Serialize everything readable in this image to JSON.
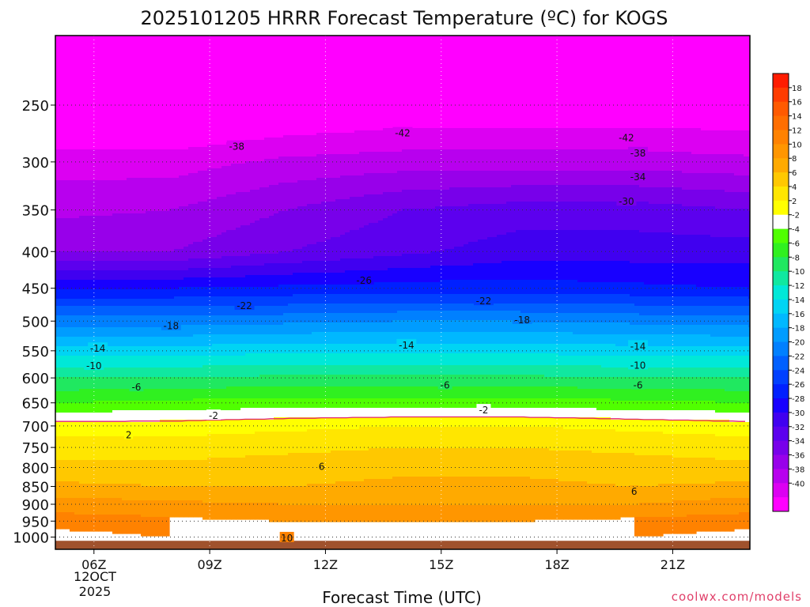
{
  "chart_data": {
    "type": "heatmap",
    "title": "2025101205 HRRR Forecast Temperature (ºC) for KOGS",
    "xlabel": "Forecast Time (UTC)",
    "ylabel": "",
    "x_range_hours_utc": [
      5,
      23
    ],
    "y_range_hPa": [
      1040,
      200
    ],
    "y_scale": "log",
    "x_ticks": [
      {
        "hour": 6,
        "label": "06Z"
      },
      {
        "hour": 9,
        "label": "09Z"
      },
      {
        "hour": 12,
        "label": "12Z"
      },
      {
        "hour": 15,
        "label": "15Z"
      },
      {
        "hour": 18,
        "label": "18Z"
      },
      {
        "hour": 21,
        "label": "21Z"
      }
    ],
    "date_label": {
      "line1": "12OCT",
      "line2": "2025"
    },
    "y_ticks": [
      250,
      300,
      350,
      400,
      450,
      500,
      550,
      600,
      650,
      700,
      750,
      800,
      850,
      900,
      950,
      1000
    ],
    "dotted_isobars": [
      250,
      300,
      350,
      400,
      450,
      500,
      550,
      600,
      650,
      700,
      750,
      800,
      850,
      900,
      950,
      1000
    ],
    "temperature_profile": {
      "hours": [
        5,
        8,
        11,
        14,
        17,
        20,
        23
      ],
      "levels_hPa": [
        1000,
        950,
        900,
        850,
        800,
        750,
        700,
        650,
        600,
        550,
        500,
        450,
        400,
        350,
        300,
        250,
        210
      ],
      "values_degC": [
        [
          13,
          12,
          11.5,
          11,
          11,
          12,
          13
        ],
        [
          11,
          10.5,
          10,
          10,
          10,
          10.5,
          11
        ],
        [
          9,
          8.5,
          8,
          8,
          8,
          8,
          9
        ],
        [
          6.5,
          6,
          6,
          6.5,
          6.5,
          6,
          6.5
        ],
        [
          4.5,
          4.5,
          5,
          5.5,
          5.5,
          5,
          4.5
        ],
        [
          3,
          3,
          3.5,
          4,
          4,
          3.5,
          3
        ],
        [
          1,
          1,
          1.5,
          2,
          2,
          1.5,
          1
        ],
        [
          -4,
          -3.5,
          -3,
          -3,
          -3,
          -3.5,
          -4
        ],
        [
          -8,
          -8,
          -7.5,
          -7.5,
          -7.5,
          -8,
          -8
        ],
        [
          -13,
          -13,
          -12.5,
          -12.5,
          -12.5,
          -13,
          -13
        ],
        [
          -19,
          -19,
          -18.5,
          -18,
          -18,
          -18.5,
          -19
        ],
        [
          -26,
          -26,
          -25.5,
          -25,
          -25,
          -25.5,
          -26
        ],
        [
          -34,
          -34,
          -32,
          -30.5,
          -29,
          -29,
          -29
        ],
        [
          -36.5,
          -36,
          -34,
          -32,
          -31,
          -31,
          -32
        ],
        [
          -39,
          -39,
          -37.5,
          -37,
          -37,
          -37,
          -37.5
        ],
        [
          -44,
          -44,
          -43,
          -42,
          -42,
          -42,
          -42
        ],
        [
          -46,
          -46,
          -46,
          -46,
          -46,
          -46,
          -46
        ]
      ]
    },
    "contour_labels": [
      {
        "text": "-42",
        "hour": 14.0,
        "hPa": 273
      },
      {
        "text": "-42",
        "hour": 19.8,
        "hPa": 277
      },
      {
        "text": "-38",
        "hour": 9.7,
        "hPa": 285
      },
      {
        "text": "-38",
        "hour": 20.1,
        "hPa": 291
      },
      {
        "text": "-34",
        "hour": 20.1,
        "hPa": 314
      },
      {
        "text": "-30",
        "hour": 19.8,
        "hPa": 340
      },
      {
        "text": "-26",
        "hour": 13.0,
        "hPa": 438
      },
      {
        "text": "-22",
        "hour": 9.9,
        "hPa": 475
      },
      {
        "text": "-22",
        "hour": 16.1,
        "hPa": 468
      },
      {
        "text": "-18",
        "hour": 8.0,
        "hPa": 507
      },
      {
        "text": "-18",
        "hour": 17.1,
        "hPa": 497
      },
      {
        "text": "-14",
        "hour": 6.1,
        "hPa": 545
      },
      {
        "text": "-14",
        "hour": 14.1,
        "hPa": 539
      },
      {
        "text": "-14",
        "hour": 20.1,
        "hPa": 541
      },
      {
        "text": "-10",
        "hour": 6.0,
        "hPa": 576
      },
      {
        "text": "-10",
        "hour": 20.1,
        "hPa": 575
      },
      {
        "text": "-6",
        "hour": 7.1,
        "hPa": 617
      },
      {
        "text": "-6",
        "hour": 15.1,
        "hPa": 613
      },
      {
        "text": "-6",
        "hour": 20.1,
        "hPa": 613
      },
      {
        "text": "-2",
        "hour": 9.1,
        "hPa": 676
      },
      {
        "text": "-2",
        "hour": 16.1,
        "hPa": 664
      },
      {
        "text": "2",
        "hour": 6.9,
        "hPa": 719
      },
      {
        "text": "6",
        "hour": 11.9,
        "hPa": 796
      },
      {
        "text": "6",
        "hour": 20.0,
        "hPa": 862
      },
      {
        "text": "10",
        "hour": 11.0,
        "hPa": 1001
      }
    ],
    "colorbar": {
      "labels": [
        "18",
        "16",
        "14",
        "12",
        "10",
        "8",
        "6",
        "4",
        "2",
        "-2",
        "-4",
        "-6",
        "-8",
        "-10",
        "-12",
        "-14",
        "-16",
        "-18",
        "-20",
        "-22",
        "-24",
        "-26",
        "-28",
        "-30",
        "-32",
        "-34",
        "-36",
        "-38",
        "-40"
      ],
      "colors": [
        "#ff1c00",
        "#ff3c00",
        "#ff5a00",
        "#ff6e00",
        "#ff8200",
        "#ff9600",
        "#ffaa00",
        "#ffc800",
        "#ffe600",
        "#ffff00",
        "#ffffff",
        "#50ff00",
        "#30f020",
        "#20e860",
        "#10e8a0",
        "#00e8d8",
        "#00d4f4",
        "#00b8ff",
        "#009cff",
        "#0080ff",
        "#0060ff",
        "#0040ff",
        "#0020ff",
        "#1800ff",
        "#4000f0",
        "#5c00ee",
        "#7800ea",
        "#9800ea",
        "#b800ee",
        "#dc00f2",
        "#ff00ff"
      ],
      "range": [
        -42,
        20
      ],
      "step": 2
    },
    "isotherm_zero_color": "#e0206e",
    "ground_color": "#a0522d",
    "credit": "coolwx.com/models"
  }
}
